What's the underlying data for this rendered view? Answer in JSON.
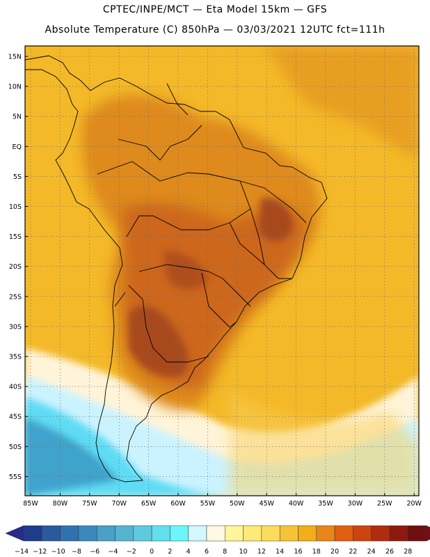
{
  "header": {
    "line1": "CPTEC/INPE/MCT —  Eta Model 15km — GFS",
    "line2": "Absolute Temperature (C) 850hPa — 03/03/2021 12UTC fct=111h"
  },
  "map": {
    "lat_labels": [
      "15N",
      "10N",
      "5N",
      "EQ",
      "5S",
      "10S",
      "15S",
      "20S",
      "25S",
      "30S",
      "35S",
      "40S",
      "45S",
      "50S",
      "55S"
    ],
    "lon_labels": [
      "85W",
      "80W",
      "75W",
      "70W",
      "65W",
      "60W",
      "55W",
      "50W",
      "45W",
      "40W",
      "35W",
      "30W",
      "25W",
      "20W"
    ],
    "colors": {
      "ocean_warm": "#f4b928",
      "land_hot": "#de8a1c",
      "land_hotter": "#c9621a",
      "hot_core": "#a8491c",
      "cool_band": "#fff4d9",
      "cold_band": "#cbf3ff",
      "cyan": "#5fdcf4",
      "deep_cold": "#3fa3cc",
      "coast_line": "#000000"
    }
  },
  "colorbar": {
    "labels": [
      "-14",
      "-12",
      "-10",
      "-8",
      "-6",
      "-4",
      "-2",
      "0",
      "2",
      "4",
      "6",
      "8",
      "10",
      "12",
      "14",
      "16",
      "18",
      "20",
      "22",
      "24",
      "26",
      "28"
    ],
    "colors": [
      "#1f3c8c",
      "#2a5a9e",
      "#3072b0",
      "#3a88bd",
      "#4aa0c6",
      "#56b4cf",
      "#5ecadf",
      "#62e0ec",
      "#6cf6fb",
      "#d2f7ff",
      "#fff8e2",
      "#fff59a",
      "#ffe978",
      "#fbdc5c",
      "#f5c33a",
      "#f1ad1a",
      "#e8861a",
      "#df6010",
      "#cc4510",
      "#b02c10",
      "#8c1a10",
      "#6e1010"
    ],
    "end_left": "#2a2a88",
    "end_right": "#7a0a18"
  }
}
